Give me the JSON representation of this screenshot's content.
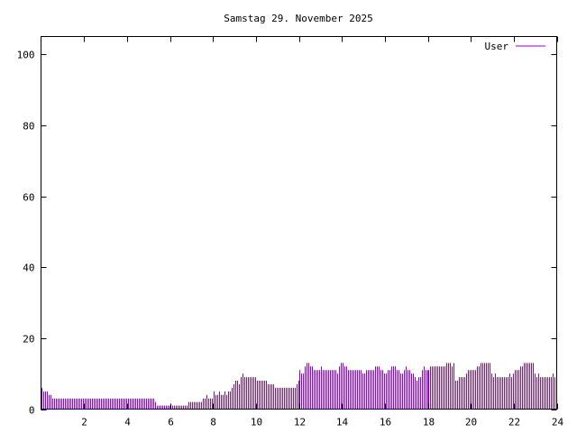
{
  "chart_data": {
    "type": "bar",
    "title": "Samstag 29. November 2025",
    "xlabel": "",
    "ylabel": "",
    "xlim": [
      0,
      24
    ],
    "ylim": [
      0,
      105
    ],
    "x_ticks": [
      2,
      4,
      6,
      8,
      10,
      12,
      14,
      16,
      18,
      20,
      22,
      24
    ],
    "y_ticks": [
      0,
      20,
      40,
      60,
      80,
      100
    ],
    "grid": false,
    "legend_position": "top-right",
    "x_step_hours": 0.0833,
    "series": [
      {
        "name": "User",
        "color": "#9400d3",
        "values": [
          6,
          5,
          5,
          5,
          4,
          4,
          3,
          3,
          3,
          3,
          3,
          3,
          3,
          3,
          3,
          3,
          3,
          3,
          3,
          3,
          3,
          3,
          3,
          3,
          3,
          3,
          3,
          3,
          3,
          3,
          3,
          3,
          3,
          3,
          3,
          3,
          3,
          3,
          3,
          3,
          3,
          3,
          3,
          3,
          3,
          3,
          3,
          3,
          3,
          3,
          3,
          3,
          3,
          3,
          3,
          3,
          3,
          3,
          3,
          3,
          3,
          3,
          3,
          2,
          1,
          1,
          1,
          1,
          1,
          1,
          1,
          1,
          1,
          1,
          1,
          1,
          1,
          1,
          1,
          1,
          1,
          1,
          2,
          2,
          2,
          2,
          2,
          2,
          2,
          2,
          3,
          3,
          4,
          3,
          3,
          3,
          5,
          4,
          4,
          5,
          4,
          4,
          5,
          4,
          5,
          5,
          6,
          7,
          8,
          8,
          7,
          9,
          10,
          9,
          9,
          9,
          9,
          9,
          9,
          9,
          8,
          8,
          8,
          8,
          8,
          8,
          7,
          7,
          7,
          7,
          6,
          6,
          6,
          6,
          6,
          6,
          6,
          6,
          6,
          6,
          6,
          6,
          7,
          8,
          11,
          10,
          10,
          12,
          13,
          13,
          12,
          12,
          11,
          11,
          11,
          11,
          12,
          11,
          11,
          11,
          11,
          11,
          11,
          11,
          11,
          10,
          12,
          13,
          13,
          12,
          12,
          11,
          11,
          11,
          11,
          11,
          11,
          11,
          11,
          10,
          10,
          11,
          11,
          11,
          11,
          11,
          12,
          12,
          12,
          11,
          11,
          10,
          10,
          11,
          11,
          12,
          12,
          12,
          11,
          11,
          10,
          10,
          11,
          12,
          11,
          11,
          10,
          10,
          9,
          8,
          9,
          9,
          11,
          12,
          11,
          11,
          11,
          12,
          12,
          12,
          12,
          12,
          12,
          12,
          12,
          12,
          13,
          13,
          13,
          12,
          13,
          8,
          8,
          9,
          9,
          9,
          9,
          10,
          11,
          11,
          11,
          11,
          11,
          12,
          12,
          13,
          13,
          13,
          13,
          13,
          13,
          10,
          9,
          10,
          9,
          9,
          9,
          9,
          9,
          9,
          9,
          10,
          9,
          10,
          11,
          11,
          11,
          12,
          12,
          13,
          13,
          13,
          13,
          13,
          13,
          10,
          9,
          10,
          9,
          9,
          9,
          9,
          9,
          9,
          9,
          10,
          9,
          10
        ]
      }
    ]
  }
}
